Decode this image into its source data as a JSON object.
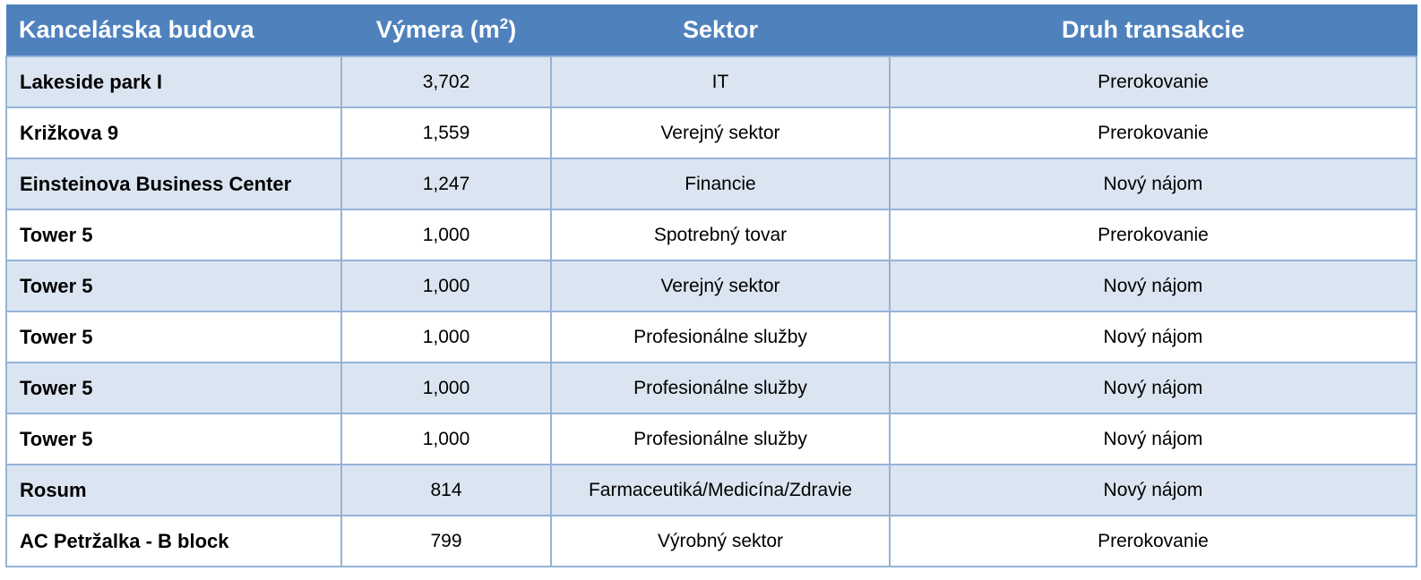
{
  "headers": {
    "building": "Kancelárska budova",
    "area_text": "Výmera (m",
    "area_sup": "2",
    "area_close": ")",
    "sector": "Sektor",
    "transaction": "Druh transakcie"
  },
  "rows": [
    {
      "building": "Lakeside park I",
      "area": "3,702",
      "sector": "IT",
      "transaction": "Prerokovanie"
    },
    {
      "building": "Križkova 9",
      "area": "1,559",
      "sector": "Verejný sektor",
      "transaction": "Prerokovanie"
    },
    {
      "building": "Einsteinova Business Center",
      "area": "1,247",
      "sector": "Financie",
      "transaction": "Nový nájom"
    },
    {
      "building": "Tower 5",
      "area": "1,000",
      "sector": "Spotrebný tovar",
      "transaction": "Prerokovanie"
    },
    {
      "building": "Tower 5",
      "area": "1,000",
      "sector": "Verejný sektor",
      "transaction": "Nový nájom"
    },
    {
      "building": "Tower 5",
      "area": "1,000",
      "sector": "Profesionálne služby",
      "transaction": "Nový nájom"
    },
    {
      "building": "Tower 5",
      "area": "1,000",
      "sector": "Profesionálne služby",
      "transaction": "Nový nájom"
    },
    {
      "building": "Tower 5",
      "area": "1,000",
      "sector": "Profesionálne služby",
      "transaction": "Nový nájom"
    },
    {
      "building": "Rosum",
      "area": "814",
      "sector": "Farmaceutiká/Medicína/Zdravie",
      "transaction": "Nový nájom"
    },
    {
      "building": "AC Petržalka - B block",
      "area": "799",
      "sector": "Výrobný sektor",
      "transaction": "Prerokovanie"
    }
  ],
  "colors": {
    "header_bg": "#4f81bd",
    "band_bg": "#dbe5f1",
    "border": "#95b3d7"
  }
}
